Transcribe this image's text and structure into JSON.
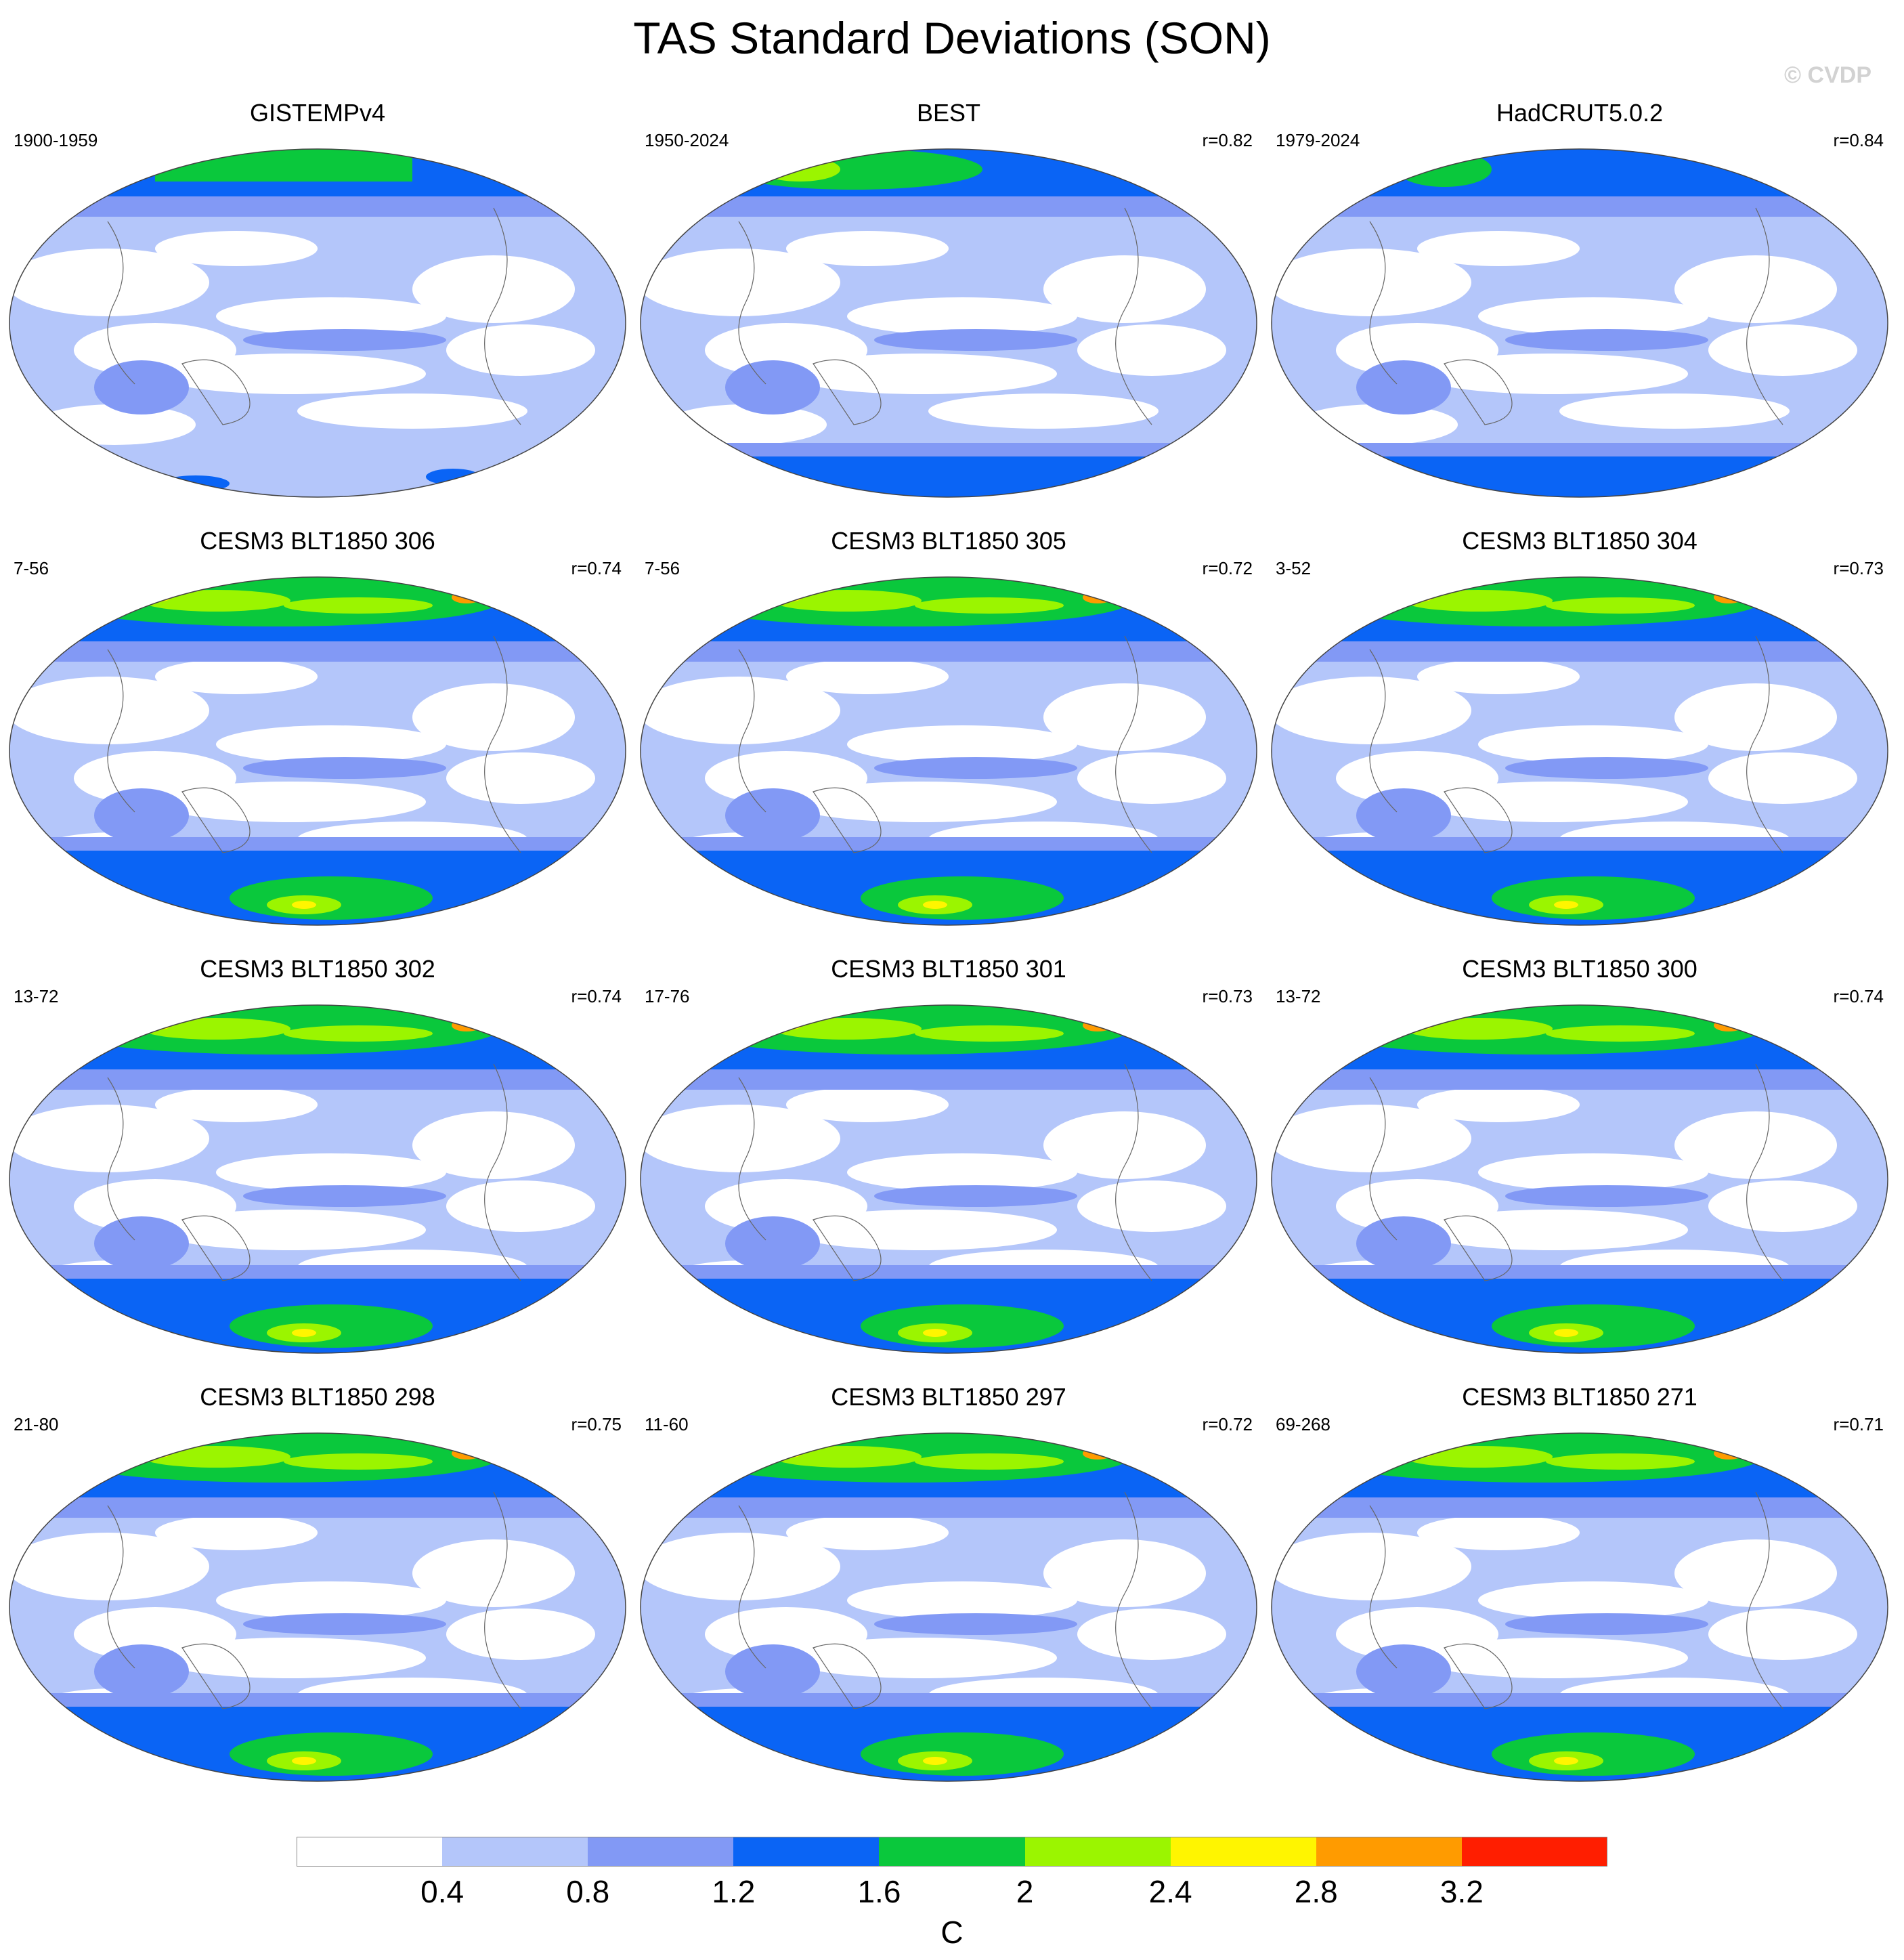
{
  "title": "TAS Standard Deviations (SON)",
  "watermark": "© CVDP",
  "panels": [
    {
      "title": "GISTEMPv4",
      "years": "1900-1959",
      "corr": ""
    },
    {
      "title": "BEST",
      "years": "1950-2024",
      "corr": "r=0.82"
    },
    {
      "title": "HadCRUT5.0.2",
      "years": "1979-2024",
      "corr": "r=0.84"
    },
    {
      "title": "CESM3 BLT1850 306",
      "years": "7-56",
      "corr": "r=0.74"
    },
    {
      "title": "CESM3 BLT1850 305",
      "years": "7-56",
      "corr": "r=0.72"
    },
    {
      "title": "CESM3 BLT1850 304",
      "years": "3-52",
      "corr": "r=0.73"
    },
    {
      "title": "CESM3 BLT1850 302",
      "years": "13-72",
      "corr": "r=0.74"
    },
    {
      "title": "CESM3 BLT1850 301",
      "years": "17-76",
      "corr": "r=0.73"
    },
    {
      "title": "CESM3 BLT1850 300",
      "years": "13-72",
      "corr": "r=0.74"
    },
    {
      "title": "CESM3 BLT1850 298",
      "years": "21-80",
      "corr": "r=0.75"
    },
    {
      "title": "CESM3 BLT1850 297",
      "years": "11-60",
      "corr": "r=0.72"
    },
    {
      "title": "CESM3 BLT1850 271",
      "years": "69-268",
      "corr": "r=0.71"
    }
  ],
  "colorbar": {
    "levels": [
      "0.4",
      "0.8",
      "1.2",
      "1.6",
      "2",
      "2.4",
      "2.8",
      "3.2"
    ],
    "colors": [
      "#ffffff",
      "#b4c6fa",
      "#8299f5",
      "#0a64f5",
      "#0ac83c",
      "#9bf500",
      "#fff500",
      "#ff9b00",
      "#ff1e00"
    ],
    "units": "C"
  }
}
